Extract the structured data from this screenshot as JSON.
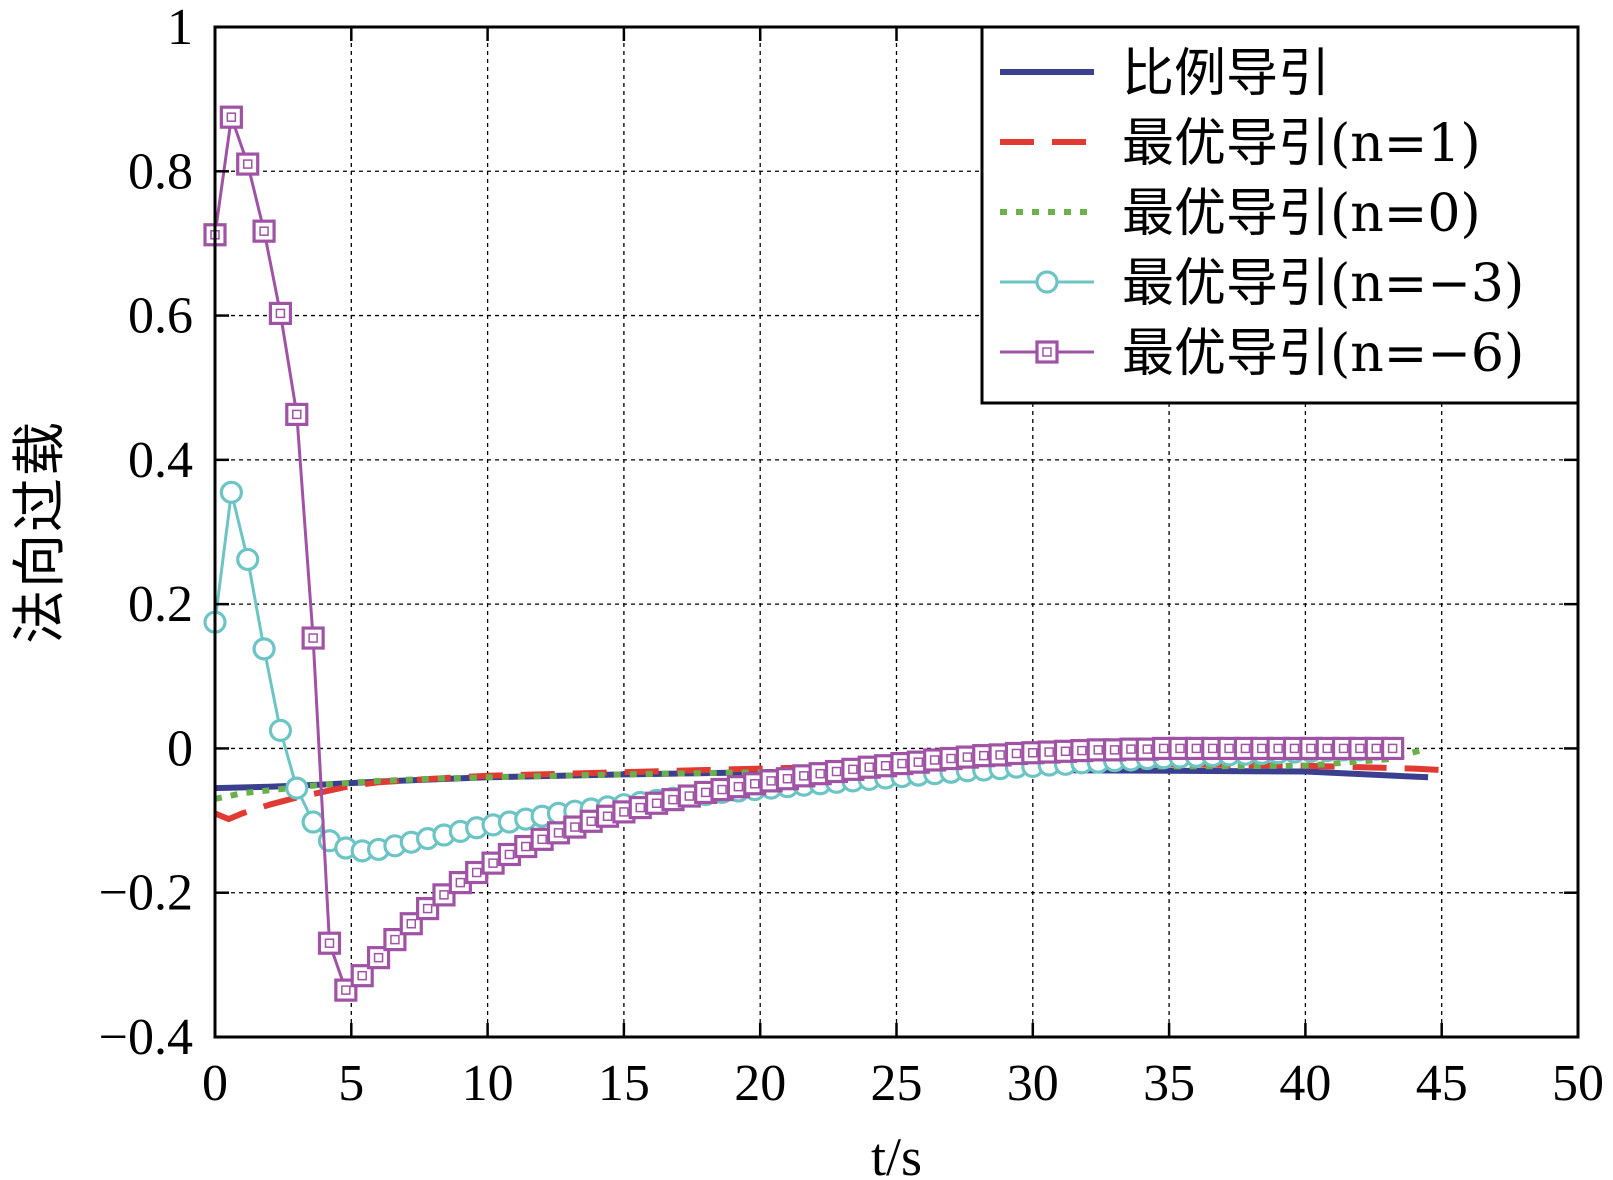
{
  "chart_data": {
    "type": "line",
    "xlabel": "t/s",
    "ylabel": "法向过载",
    "xlim": [
      0,
      50
    ],
    "ylim": [
      -0.4,
      1
    ],
    "xticks": [
      0,
      5,
      10,
      15,
      20,
      25,
      30,
      35,
      40,
      45,
      50
    ],
    "yticks": [
      -0.4,
      -0.2,
      0,
      0.2,
      0.4,
      0.6,
      0.8,
      1
    ],
    "ytick_labels": [
      "−0.4",
      "−0.2",
      "0",
      "0.2",
      "0.4",
      "0.6",
      "0.8",
      "1"
    ],
    "grid": true,
    "legend_position": "top-right",
    "series": [
      {
        "name": "比例导引",
        "color": "#3b3f8f",
        "style": "solid",
        "marker": "none",
        "x": [
          0,
          2,
          4,
          6,
          8,
          10,
          15,
          20,
          25,
          28,
          30,
          35,
          40,
          44.5
        ],
        "y": [
          -0.055,
          -0.053,
          -0.05,
          -0.046,
          -0.043,
          -0.04,
          -0.036,
          -0.033,
          -0.031,
          -0.03,
          -0.03,
          -0.031,
          -0.032,
          -0.04
        ]
      },
      {
        "name": "最优导引(n=1)",
        "color": "#e03a32",
        "style": "dashed",
        "marker": "none",
        "x": [
          0,
          0.5,
          1,
          2,
          3,
          4,
          5,
          6,
          8,
          10,
          15,
          20,
          25,
          30,
          35,
          40,
          44,
          45
        ],
        "y": [
          -0.09,
          -0.098,
          -0.09,
          -0.078,
          -0.068,
          -0.06,
          -0.052,
          -0.047,
          -0.042,
          -0.038,
          -0.033,
          -0.028,
          -0.024,
          -0.022,
          -0.022,
          -0.024,
          -0.028,
          -0.03
        ]
      },
      {
        "name": "最优导引(n=0)",
        "color": "#6ab04c",
        "style": "dotted",
        "marker": "none",
        "x": [
          0,
          1,
          2,
          4,
          6,
          8,
          10,
          15,
          20,
          25,
          30,
          35,
          40,
          43,
          44.5
        ],
        "y": [
          -0.07,
          -0.062,
          -0.058,
          -0.05,
          -0.045,
          -0.042,
          -0.04,
          -0.036,
          -0.033,
          -0.028,
          -0.026,
          -0.025,
          -0.024,
          -0.015,
          0
        ]
      },
      {
        "name": "最优导引(n=−3)",
        "color": "#6cc4c4",
        "style": "solid",
        "marker": "circle",
        "x": [
          0,
          0.6,
          1.2,
          1.8,
          2.4,
          3,
          3.6,
          4.2,
          4.8,
          5.4,
          6,
          6.6,
          7.2,
          7.8,
          8.4,
          9,
          9.6,
          10.2,
          10.8,
          11.4,
          12,
          12.6,
          13.2,
          13.8,
          14.4,
          15,
          15.6,
          16.2,
          16.8,
          17.4,
          18,
          18.6,
          19.2,
          19.8,
          20.4,
          21,
          21.6,
          22.2,
          22.8,
          23.4,
          24,
          24.6,
          25.2,
          25.8,
          26.4,
          27,
          27.6,
          28.2,
          28.8,
          29.4,
          30,
          30.6,
          31.2,
          31.8,
          32.4,
          33,
          33.6,
          34.2,
          34.8,
          35.4,
          36,
          36.6,
          37.2,
          37.8,
          38.4,
          39,
          39.6,
          40.2,
          40.8,
          41.4,
          42,
          42.6,
          43.2
        ],
        "y": [
          0.175,
          0.355,
          0.262,
          0.138,
          0.025,
          -0.055,
          -0.102,
          -0.128,
          -0.138,
          -0.142,
          -0.14,
          -0.135,
          -0.13,
          -0.125,
          -0.12,
          -0.115,
          -0.11,
          -0.106,
          -0.102,
          -0.098,
          -0.094,
          -0.09,
          -0.087,
          -0.084,
          -0.081,
          -0.078,
          -0.075,
          -0.072,
          -0.069,
          -0.066,
          -0.064,
          -0.061,
          -0.059,
          -0.057,
          -0.055,
          -0.053,
          -0.051,
          -0.049,
          -0.047,
          -0.045,
          -0.043,
          -0.041,
          -0.039,
          -0.037,
          -0.035,
          -0.033,
          -0.031,
          -0.03,
          -0.028,
          -0.026,
          -0.025,
          -0.023,
          -0.022,
          -0.02,
          -0.019,
          -0.017,
          -0.016,
          -0.014,
          -0.013,
          -0.012,
          -0.011,
          -0.01,
          -0.009,
          -0.008,
          -0.007,
          -0.006,
          -0.005,
          -0.004,
          -0.003,
          -0.002,
          -0.002,
          -0.001,
          0
        ]
      },
      {
        "name": "最优导引(n=−6)",
        "color": "#a052a5",
        "style": "solid",
        "marker": "square",
        "x": [
          0,
          0.6,
          1.2,
          1.8,
          2.4,
          3,
          3.6,
          4.2,
          4.8,
          5.4,
          6,
          6.6,
          7.2,
          7.8,
          8.4,
          9,
          9.6,
          10.2,
          10.8,
          11.4,
          12,
          12.6,
          13.2,
          13.8,
          14.4,
          15,
          15.6,
          16.2,
          16.8,
          17.4,
          18,
          18.6,
          19.2,
          19.8,
          20.4,
          21,
          21.6,
          22.2,
          22.8,
          23.4,
          24,
          24.6,
          25.2,
          25.8,
          26.4,
          27,
          27.6,
          28.2,
          28.8,
          29.4,
          30,
          30.6,
          31.2,
          31.8,
          32.4,
          33,
          33.6,
          34.2,
          34.8,
          35.4,
          36,
          36.6,
          37.2,
          37.8,
          38.4,
          39,
          39.6,
          40.2,
          40.8,
          41.4,
          42,
          42.6,
          43.2
        ],
        "y": [
          0.712,
          0.875,
          0.81,
          0.717,
          0.603,
          0.463,
          0.153,
          -0.27,
          -0.335,
          -0.315,
          -0.29,
          -0.265,
          -0.243,
          -0.222,
          -0.203,
          -0.186,
          -0.172,
          -0.159,
          -0.147,
          -0.136,
          -0.126,
          -0.117,
          -0.109,
          -0.101,
          -0.094,
          -0.088,
          -0.082,
          -0.076,
          -0.071,
          -0.066,
          -0.061,
          -0.057,
          -0.053,
          -0.049,
          -0.045,
          -0.042,
          -0.038,
          -0.035,
          -0.032,
          -0.029,
          -0.026,
          -0.024,
          -0.021,
          -0.019,
          -0.016,
          -0.014,
          -0.012,
          -0.01,
          -0.009,
          -0.007,
          -0.006,
          -0.005,
          -0.004,
          -0.003,
          -0.002,
          -0.002,
          -0.001,
          -0.001,
          0,
          0,
          0,
          0,
          0,
          0,
          0,
          0,
          0,
          0,
          0,
          0,
          0,
          0,
          0
        ]
      }
    ]
  }
}
